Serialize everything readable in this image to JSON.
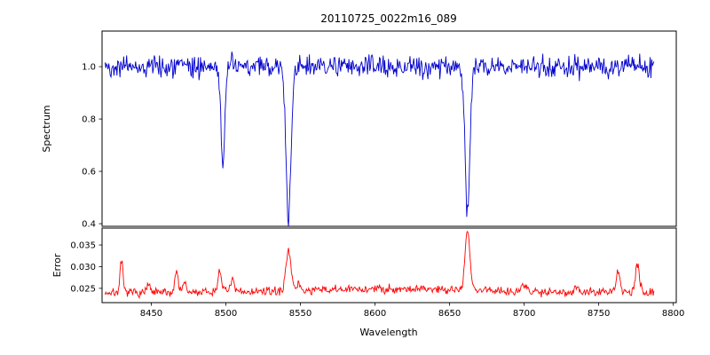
{
  "figure": {
    "background": "#ffffff",
    "frame_color": "#000000"
  },
  "chart_data": {
    "type": "line",
    "title": "20110725_0022m16_089",
    "xlabel": "Wavelength",
    "xlim": [
      8417,
      8802
    ],
    "x_data_range": [
      8419,
      8787
    ],
    "x_step": 0.5,
    "xticks": [
      8450,
      8500,
      8550,
      8600,
      8650,
      8700,
      8750,
      8800
    ],
    "grid": false,
    "legend": "none",
    "panels": [
      {
        "name": "spectrum",
        "ylabel": "Spectrum",
        "color": "#0000cd",
        "ylim": [
          0.39,
          1.136
        ],
        "yticks": [
          0.4,
          0.6,
          0.8,
          1.0
        ],
        "ytick_labels": [
          "0.4",
          "0.6",
          "0.8",
          "1.0"
        ],
        "continuum": 1.0,
        "noise_std": 0.02,
        "absorption_lines": [
          {
            "center": 8498,
            "depth": 0.37,
            "sigma": 1.3
          },
          {
            "center": 8542,
            "depth": 0.57,
            "sigma": 1.7
          },
          {
            "center": 8662,
            "depth": 0.55,
            "sigma": 1.6
          }
        ]
      },
      {
        "name": "error",
        "ylabel": "Error",
        "color": "#ff0000",
        "ylim": [
          0.0217,
          0.0389
        ],
        "yticks": [
          0.025,
          0.03,
          0.035
        ],
        "ytick_labels": [
          "0.025",
          "0.030",
          "0.035"
        ],
        "baseline": 0.024,
        "noise_std": 0.0005,
        "peaks": [
          {
            "center": 8430,
            "height": 0.007,
            "sigma": 1.0
          },
          {
            "center": 8448,
            "height": 0.0018,
            "sigma": 1.0
          },
          {
            "center": 8467,
            "height": 0.0052,
            "sigma": 1.1
          },
          {
            "center": 8472,
            "height": 0.0025,
            "sigma": 1.0
          },
          {
            "center": 8496,
            "height": 0.005,
            "sigma": 1.3
          },
          {
            "center": 8504,
            "height": 0.0028,
            "sigma": 1.2
          },
          {
            "center": 8542,
            "height": 0.01,
            "sigma": 1.6
          },
          {
            "center": 8549,
            "height": 0.0018,
            "sigma": 1.0
          },
          {
            "center": 8620,
            "height": 0.0009,
            "sigma": 60
          },
          {
            "center": 8662,
            "height": 0.0135,
            "sigma": 1.6
          },
          {
            "center": 8700,
            "height": 0.0012,
            "sigma": 1.5
          },
          {
            "center": 8735,
            "height": 0.001,
            "sigma": 1.5
          },
          {
            "center": 8763,
            "height": 0.0052,
            "sigma": 1.3
          },
          {
            "center": 8776,
            "height": 0.0062,
            "sigma": 1.3
          }
        ]
      }
    ]
  }
}
